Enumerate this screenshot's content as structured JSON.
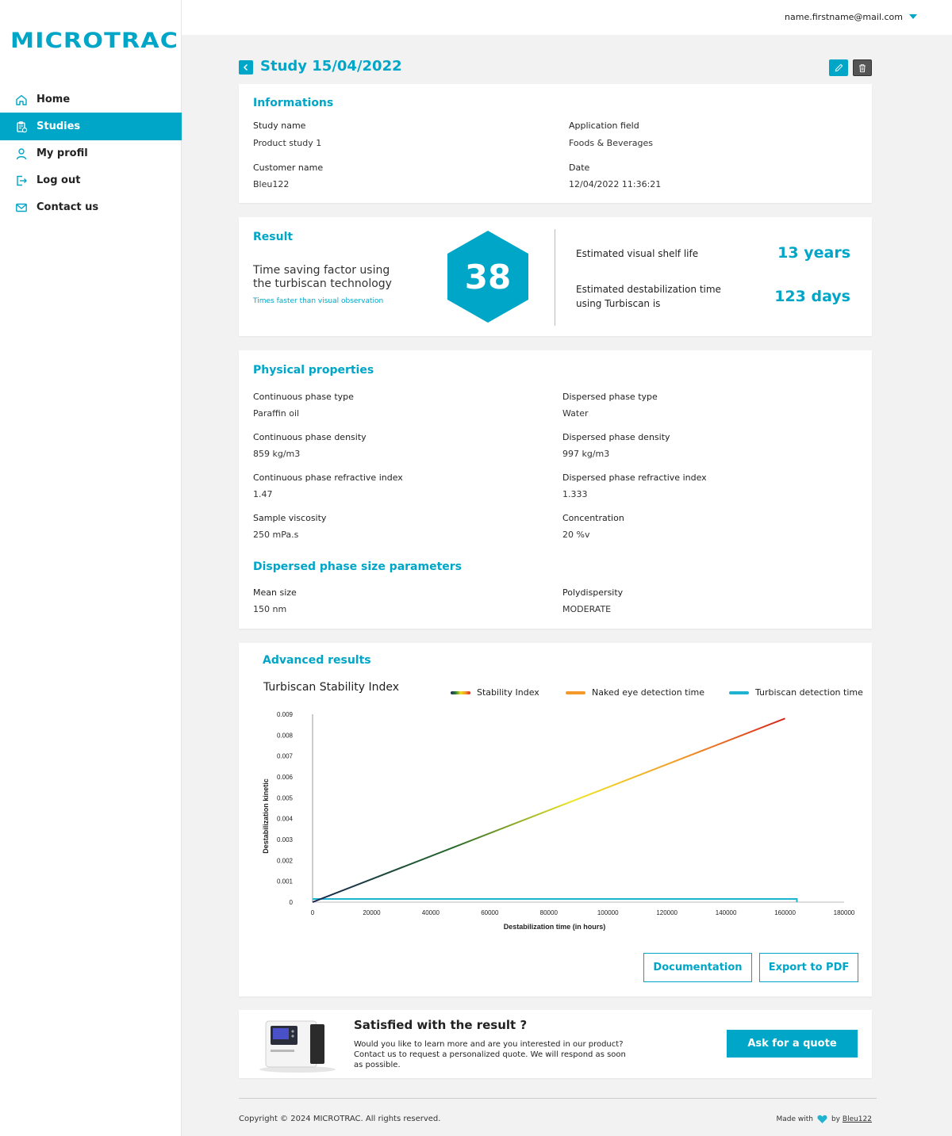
{
  "brand": {
    "logo_text": "MICROTRAC",
    "accent": "#00a6c7"
  },
  "user": {
    "email": "name.firstname@mail.com"
  },
  "sidebar": {
    "items": [
      {
        "label": "Home",
        "icon": "home-icon",
        "active": false
      },
      {
        "label": "Studies",
        "icon": "clipboard-icon",
        "active": true
      },
      {
        "label": "My profil",
        "icon": "user-icon",
        "active": false
      },
      {
        "label": "Log out",
        "icon": "logout-icon",
        "active": false
      },
      {
        "label": "Contact us",
        "icon": "mail-icon",
        "active": false
      }
    ]
  },
  "page": {
    "title": "Study 15/04/2022"
  },
  "informations": {
    "title": "Informations",
    "study_name_label": "Study name",
    "study_name": "Product study 1",
    "application_field_label": "Application field",
    "application_field": "Foods & Beverages",
    "customer_name_label": "Customer name",
    "customer_name": "Bleu122",
    "date_label": "Date",
    "date": "12/04/2022 11:36:21"
  },
  "result": {
    "title": "Result",
    "factor_text_line1": "Time saving factor using",
    "factor_text_line2": "the turbiscan technology",
    "factor_subtext": "Times faster than visual observation",
    "factor_value": "38",
    "shelf_life_label": "Estimated visual shelf life",
    "shelf_life_value": "13 years",
    "destab_label_line1": "Estimated destabilization time",
    "destab_label_line2": "using Turbiscan is",
    "destab_value": "123 days"
  },
  "physical": {
    "title": "Physical properties",
    "cont_type_label": "Continuous phase type",
    "cont_type": "Paraffin oil",
    "disp_type_label": "Dispersed phase type",
    "disp_type": "Water",
    "cont_density_label": "Continuous phase density",
    "cont_density": "859 kg/m3",
    "disp_density_label": "Dispersed phase density",
    "disp_density": "997 kg/m3",
    "cont_ri_label": "Continuous phase refractive index",
    "cont_ri": "1.47",
    "disp_ri_label": "Dispersed phase refractive index",
    "disp_ri": "1.333",
    "viscosity_label": "Sample viscosity",
    "viscosity": "250 mPa.s",
    "concentration_label": "Concentration",
    "concentration": "20 %v",
    "size_title": "Dispersed phase size parameters",
    "mean_size_label": "Mean size",
    "mean_size": "150 nm",
    "polydispersity_label": "Polydispersity",
    "polydispersity": "MODERATE"
  },
  "advanced": {
    "title": "Advanced results",
    "documentation_label": "Documentation",
    "export_label": "Export to PDF"
  },
  "chart_data": {
    "type": "line",
    "title": "Turbiscan Stability Index",
    "xlabel": "Destabilization time (in hours)",
    "ylabel": "Destabilization kinetic",
    "xlim": [
      0,
      180000
    ],
    "ylim": [
      0,
      0.009
    ],
    "x_ticks": [
      "0",
      "20000",
      "40000",
      "60000",
      "80000",
      "100000",
      "120000",
      "140000",
      "160000",
      "180000"
    ],
    "y_ticks": [
      "0",
      "0.001",
      "0.002",
      "0.003",
      "0.004",
      "0.005",
      "0.006",
      "0.007",
      "0.008",
      "0.009"
    ],
    "legend_position": "top-right",
    "series": [
      {
        "name": "Stability Index",
        "color": "gradient",
        "x": [
          0,
          160000
        ],
        "y": [
          0,
          0.0088
        ]
      },
      {
        "name": "Naked eye detection time",
        "color": "#f39a2b",
        "x": [],
        "y": []
      },
      {
        "name": "Turbiscan detection time",
        "color": "#1fb3d2",
        "x": [
          0,
          164000,
          164000
        ],
        "y": [
          0.00015,
          0.00015,
          0
        ]
      }
    ]
  },
  "quote": {
    "title": "Satisfied with the result ?",
    "text_line1": "Would you like to learn more and are you interested in our product?",
    "text_line2": "Contact us to request a personalized quote. We will respond as soon",
    "text_line3": "as possible.",
    "button_label": "Ask for a quote"
  },
  "footer": {
    "copyright": "Copyright © 2024 MICROTRAC. All rights reserved.",
    "made_with": "Made with",
    "by": "by",
    "author": "Bleu122"
  }
}
